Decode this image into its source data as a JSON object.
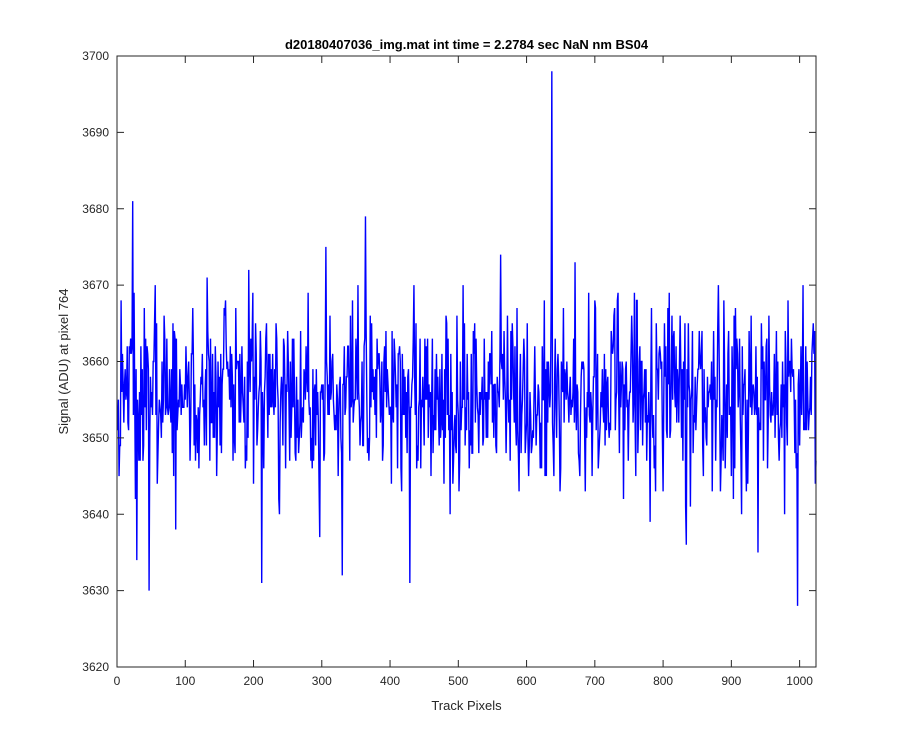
{
  "chart_data": {
    "type": "line",
    "title": "d20180407036_img.mat int time = 2.2784 sec  NaN nm BS04",
    "xlabel": "Track Pixels",
    "ylabel": "Signal (ADU) at pixel 764",
    "xlim": [
      0,
      1024
    ],
    "ylim": [
      3620,
      3700
    ],
    "xticks": [
      0,
      100,
      200,
      300,
      400,
      500,
      600,
      700,
      800,
      900,
      1000
    ],
    "yticks": [
      3620,
      3630,
      3640,
      3650,
      3660,
      3670,
      3680,
      3690,
      3700
    ],
    "xtick_labels": [
      "0",
      "100",
      "200",
      "300",
      "400",
      "500",
      "600",
      "700",
      "800",
      "900",
      "1000"
    ],
    "ytick_labels": [
      "3620",
      "3630",
      "3640",
      "3650",
      "3660",
      "3670",
      "3680",
      "3690",
      "3700"
    ],
    "grid": false,
    "legend": "none",
    "line_color": "#0000ff",
    "series": [
      {
        "x_start": 1,
        "x_step": 1,
        "y_mean": 3656,
        "y_noise_sd": 6,
        "notable_points": [
          {
            "x": 23,
            "y": 3681
          },
          {
            "x": 47,
            "y": 3630
          },
          {
            "x": 212,
            "y": 3631
          },
          {
            "x": 330,
            "y": 3632
          },
          {
            "x": 364,
            "y": 3679
          },
          {
            "x": 429,
            "y": 3631
          },
          {
            "x": 637,
            "y": 3698
          },
          {
            "x": 997,
            "y": 3628
          }
        ]
      }
    ]
  }
}
